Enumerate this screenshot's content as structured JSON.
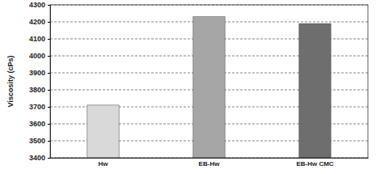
{
  "chart_data": {
    "type": "bar",
    "y_label": "Viscosity (cPs)",
    "categories": [
      "Hw",
      "EB-Hw",
      "EB-Hw CMC"
    ],
    "values": [
      3710,
      4230,
      4190
    ],
    "colors": [
      "#d9d9d9",
      "#a6a6a6",
      "#6e6e6e"
    ],
    "ylim": [
      3400,
      4300
    ],
    "yticks": [
      3400,
      3500,
      3600,
      3700,
      3800,
      3900,
      4000,
      4100,
      4200,
      4300
    ],
    "grid": true
  }
}
